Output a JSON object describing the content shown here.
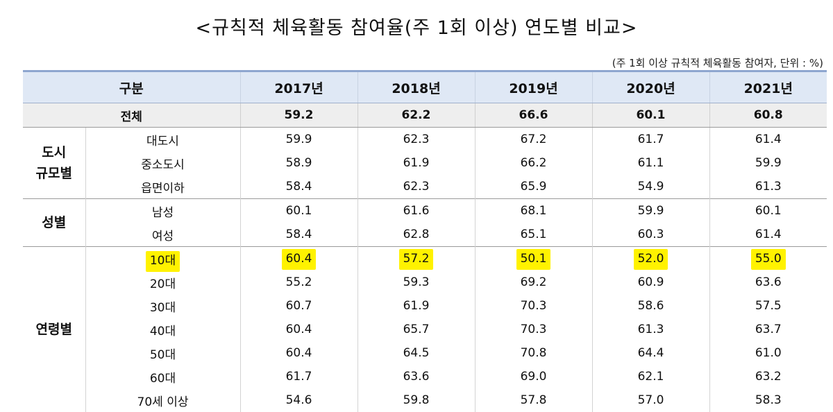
{
  "title": "<규칙적 체육활동 참여율(주 1회 이상) 연도별 비교>",
  "unit_note": "(주 1회 이상 규칙적 체육활동 참여자, 단위 : %)",
  "header": {
    "category": "구분",
    "years": [
      "2017년",
      "2018년",
      "2019년",
      "2020년",
      "2021년"
    ]
  },
  "total": {
    "label": "전체",
    "values": [
      "59.2",
      "62.2",
      "66.6",
      "60.1",
      "60.8"
    ]
  },
  "groups": [
    {
      "name_line1": "도시",
      "name_line2": "규모별",
      "rows": [
        {
          "label": "대도시",
          "values": [
            "59.9",
            "62.3",
            "67.2",
            "61.7",
            "61.4"
          ]
        },
        {
          "label": "중소도시",
          "values": [
            "58.9",
            "61.9",
            "66.2",
            "61.1",
            "59.9"
          ]
        },
        {
          "label": "읍면이하",
          "values": [
            "58.4",
            "62.3",
            "65.9",
            "54.9",
            "61.3"
          ]
        }
      ]
    },
    {
      "name_line1": "성별",
      "name_line2": "",
      "rows": [
        {
          "label": "남성",
          "values": [
            "60.1",
            "61.6",
            "68.1",
            "59.9",
            "60.1"
          ]
        },
        {
          "label": "여성",
          "values": [
            "58.4",
            "62.8",
            "65.1",
            "60.3",
            "61.4"
          ]
        }
      ]
    },
    {
      "name_line1": "연령별",
      "name_line2": "",
      "rows": [
        {
          "label": "10대",
          "values": [
            "60.4",
            "57.2",
            "50.1",
            "52.0",
            "55.0"
          ],
          "highlighted": true
        },
        {
          "label": "20대",
          "values": [
            "55.2",
            "59.3",
            "69.2",
            "60.9",
            "63.6"
          ]
        },
        {
          "label": "30대",
          "values": [
            "60.7",
            "61.9",
            "70.3",
            "58.6",
            "57.5"
          ]
        },
        {
          "label": "40대",
          "values": [
            "60.4",
            "65.7",
            "70.3",
            "61.3",
            "63.7"
          ]
        },
        {
          "label": "50대",
          "values": [
            "60.4",
            "64.5",
            "70.8",
            "64.4",
            "61.0"
          ]
        },
        {
          "label": "60대",
          "values": [
            "61.7",
            "63.6",
            "69.0",
            "62.1",
            "63.2"
          ]
        },
        {
          "label": "70세 이상",
          "values": [
            "54.6",
            "59.8",
            "57.8",
            "57.0",
            "58.3"
          ]
        }
      ]
    }
  ],
  "colors": {
    "header_bg": "#dfe8f5",
    "highlight": "#fff200",
    "total_bg": "#eeeeee"
  }
}
